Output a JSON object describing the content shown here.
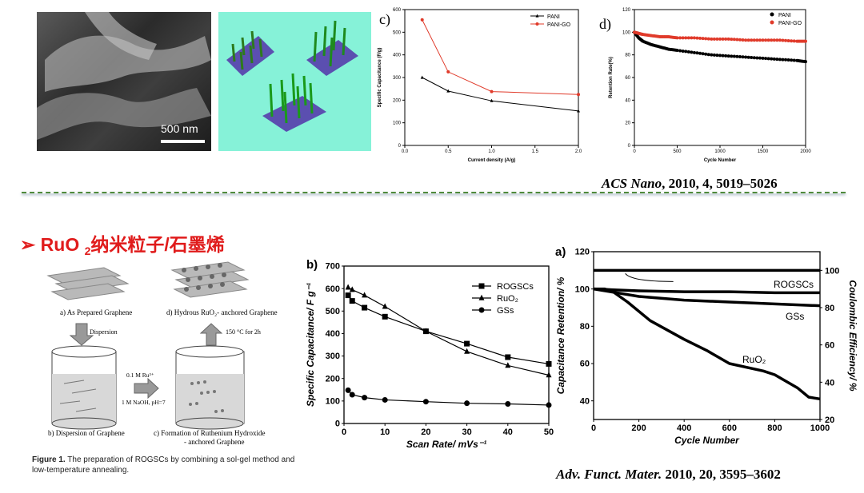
{
  "top": {
    "sem_scale_label": "500 nm",
    "reference": {
      "journal": "ACS Nano",
      "details": ", 2010, 4, 5019–5026"
    }
  },
  "section": {
    "bullet": "➢",
    "title_prefix": "RuO",
    "title_sub": "2",
    "title_suffix": "纳米粒子/石墨烯"
  },
  "scheme": {
    "label_a": "a) As Prepared Graphene",
    "label_d": "d) Hydrous RuO₂- anchored Graphene",
    "label_b": "b) Dispersion of Graphene",
    "label_c1": "c) Formation of Ruthenium Hydroxide",
    "label_c2": "- anchored Graphene",
    "dispersion": "Dispersion",
    "reagent1": "0.1 M Ru³⁺",
    "reagent2": "1 M NaOH, pH=7",
    "anneal": "150 °C for 2h",
    "caption_bold": "Figure 1.",
    "caption_text": " The preparation of ROGSCs by combining a sol-gel method and low-temperature annealing."
  },
  "bottom_reference": {
    "journal": "Adv. Funct. Mater.",
    "details": " 2010, 20, 3595–3602"
  },
  "chart_data": [
    {
      "panel": "c)",
      "type": "line",
      "xlabel": "Current density (A/g)",
      "ylabel": "Specific Capacitance (F/g)",
      "xlim": [
        0.0,
        2.0
      ],
      "ylim": [
        0,
        600
      ],
      "xticks": [
        "0.0",
        "0.5",
        "1.0",
        "1.5",
        "2.0"
      ],
      "yticks": [
        "0",
        "100",
        "200",
        "300",
        "400",
        "500",
        "600"
      ],
      "legend_position": "top-right",
      "series": [
        {
          "name": "PANI",
          "color": "#000000",
          "marker": "triangle",
          "x": [
            0.2,
            0.5,
            1.0,
            2.0
          ],
          "y": [
            300,
            240,
            197,
            152
          ]
        },
        {
          "name": "PANI-GO",
          "color": "#e03a2a",
          "marker": "circle",
          "x": [
            0.2,
            0.5,
            1.0,
            2.0
          ],
          "y": [
            555,
            325,
            238,
            225
          ]
        }
      ]
    },
    {
      "panel": "d)",
      "type": "scatter",
      "xlabel": "Cycle Number",
      "ylabel": "Retention Rate(%)",
      "xlim": [
        0,
        2000
      ],
      "ylim": [
        0,
        120
      ],
      "xticks": [
        "0",
        "500",
        "1000",
        "1500",
        "2000"
      ],
      "yticks": [
        "0",
        "20",
        "40",
        "60",
        "80",
        "100",
        "120"
      ],
      "legend_position": "top-right",
      "series": [
        {
          "name": "PANI",
          "color": "#000000",
          "x": [
            0,
            50,
            100,
            200,
            300,
            400,
            500,
            700,
            900,
            1100,
            1300,
            1500,
            1700,
            1900,
            2000
          ],
          "y": [
            100,
            95,
            92,
            89,
            87,
            85,
            84,
            82,
            80,
            79,
            78,
            77,
            76,
            75,
            74
          ]
        },
        {
          "name": "PANI-GO",
          "color": "#e03a2a",
          "x": [
            0,
            50,
            100,
            200,
            300,
            400,
            500,
            700,
            900,
            1100,
            1300,
            1500,
            1700,
            1900,
            2000
          ],
          "y": [
            100,
            99,
            98,
            97,
            96,
            96,
            95,
            95,
            94,
            94,
            93,
            93,
            93,
            92,
            92
          ]
        }
      ]
    },
    {
      "panel": "b)",
      "type": "line",
      "xlabel": "Scan Rate/ mVs⁻¹",
      "ylabel": "Specific Capacitance/ F g⁻¹",
      "xlim": [
        0,
        50
      ],
      "ylim": [
        0,
        700
      ],
      "xticks": [
        "0",
        "10",
        "20",
        "30",
        "40",
        "50"
      ],
      "yticks": [
        "0",
        "100",
        "200",
        "300",
        "400",
        "500",
        "600",
        "700"
      ],
      "legend_position": "top-right",
      "series": [
        {
          "name": "ROGSCs",
          "color": "#000000",
          "marker": "square",
          "x": [
            1,
            2,
            5,
            10,
            20,
            30,
            40,
            50
          ],
          "y": [
            570,
            545,
            515,
            475,
            410,
            355,
            295,
            265
          ]
        },
        {
          "name": "RuO₂",
          "color": "#000000",
          "marker": "triangle",
          "x": [
            1,
            2,
            5,
            10,
            20,
            30,
            40,
            50
          ],
          "y": [
            605,
            595,
            570,
            520,
            410,
            320,
            258,
            215
          ]
        },
        {
          "name": "GSs",
          "color": "#000000",
          "marker": "circle",
          "x": [
            1,
            2,
            5,
            10,
            20,
            30,
            40,
            50
          ],
          "y": [
            148,
            128,
            115,
            105,
            97,
            90,
            87,
            82
          ]
        }
      ]
    },
    {
      "panel": "a)",
      "type": "line",
      "xlabel": "Cycle Number",
      "ylabel": "Capacitance Retention/ %",
      "y2label": "Coulombic Efficiency/ %",
      "xlim": [
        0,
        1000
      ],
      "ylim": [
        30,
        120
      ],
      "y2lim": [
        20,
        110
      ],
      "xticks": [
        "0",
        "200",
        "400",
        "600",
        "800",
        "1000"
      ],
      "yticks": [
        "40",
        "60",
        "80",
        "100",
        "120"
      ],
      "y2ticks": [
        "20",
        "40",
        "60",
        "80",
        "100"
      ],
      "series": [
        {
          "name": "Coulombic efficiency",
          "axis": "right",
          "x": [
            0,
            500,
            1000
          ],
          "y": [
            100,
            100,
            100
          ]
        },
        {
          "name": "ROGSCs",
          "x": [
            0,
            100,
            200,
            400,
            600,
            800,
            1000
          ],
          "y": [
            100,
            99.5,
            99,
            98.5,
            98.5,
            98,
            98
          ]
        },
        {
          "name": "GSs",
          "x": [
            0,
            100,
            200,
            400,
            600,
            800,
            1000
          ],
          "y": [
            100,
            98,
            96,
            94,
            93,
            92,
            91
          ]
        },
        {
          "name": "RuO₂",
          "x": [
            0,
            50,
            80,
            150,
            250,
            400,
            500,
            600,
            750,
            800,
            900,
            950,
            1000
          ],
          "y": [
            100,
            100,
            99,
            93,
            83,
            73,
            67,
            60,
            56,
            54,
            47,
            42,
            41
          ]
        }
      ],
      "annotations": [
        "ROGSCs",
        "GSs",
        "RuO₂"
      ]
    }
  ]
}
